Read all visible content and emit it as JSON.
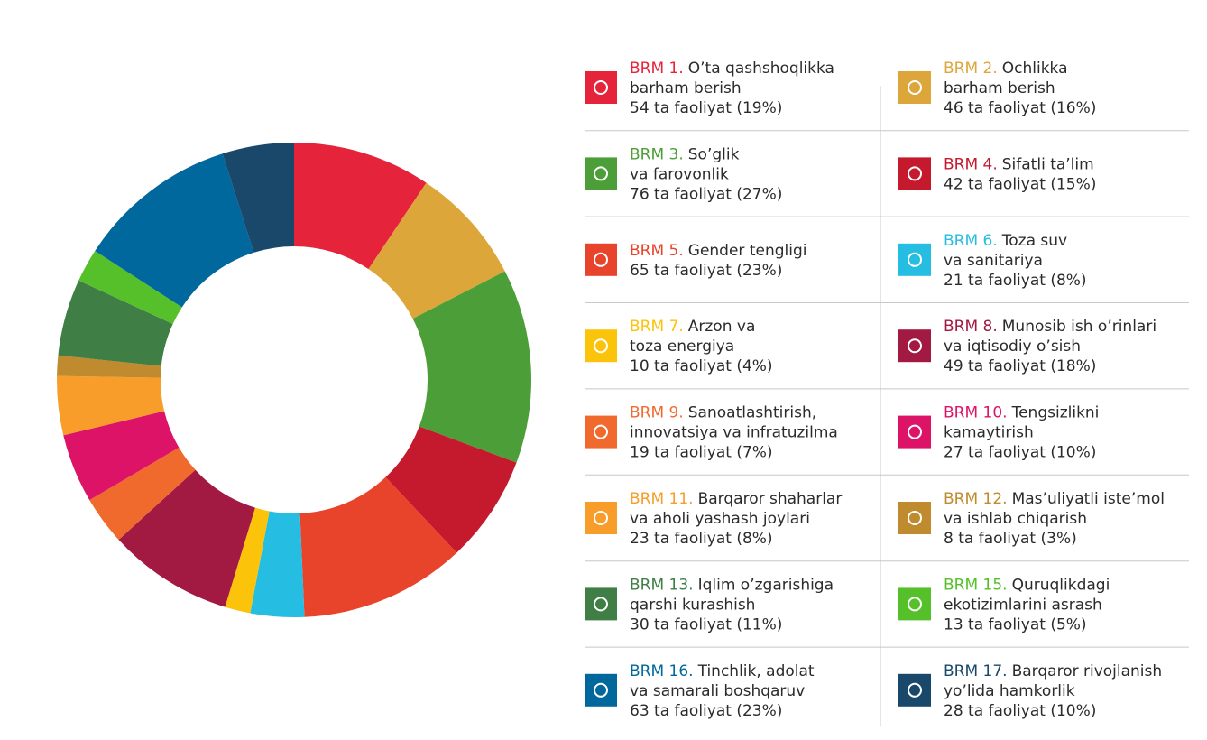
{
  "chart_data": {
    "type": "pie",
    "donut": true,
    "categories": [
      "BRM 1.",
      "BRM 2.",
      "BRM 3.",
      "BRM 4.",
      "BRM 5.",
      "BRM 6.",
      "BRM 7.",
      "BRM 8.",
      "BRM 9.",
      "BRM 10.",
      "BRM 11.",
      "BRM 12.",
      "BRM 13.",
      "BRM 15.",
      "BRM 16.",
      "BRM 17."
    ],
    "names": [
      [
        "O’ta qashshoqlikka",
        "barham berish"
      ],
      [
        "Ochlikka",
        "barham berish"
      ],
      [
        "So’glik",
        "va farovonlik"
      ],
      [
        "Sifatli ta’lim"
      ],
      [
        "Gender tengligi"
      ],
      [
        "Toza suv",
        "va sanitariya"
      ],
      [
        "Arzon va",
        "toza energiya"
      ],
      [
        "Munosib ish o’rinlari",
        "va iqtisodiy o’sish"
      ],
      [
        "Sanoatlashtirish,",
        "innovatsiya va infratuzilma"
      ],
      [
        "Tengsizlikni",
        "kamaytirish"
      ],
      [
        "Barqaror shaharlar",
        "va aholi yashash joylari"
      ],
      [
        "Mas’uliyatli iste’mol",
        "va ishlab chiqarish"
      ],
      [
        "Iqlim o’zgarishiga",
        "qarshi kurashish"
      ],
      [
        "Quruqlikdagi",
        "ekotizimlarini asrash"
      ],
      [
        "Tinchlik, adolat",
        "va samarali boshqaruv"
      ],
      [
        "Barqaror rivojlanish",
        "yo’lida hamkorlik"
      ]
    ],
    "values": [
      54,
      46,
      76,
      42,
      65,
      21,
      10,
      49,
      19,
      27,
      23,
      8,
      30,
      13,
      63,
      28
    ],
    "value_labels": [
      "54 ta faoliyat (19%)",
      "46 ta faoliyat (16%)",
      "76 ta faoliyat (27%)",
      "42 ta faoliyat (15%)",
      "65 ta faoliyat (23%)",
      "21 ta faoliyat (8%)",
      "10 ta faoliyat (4%)",
      "49 ta faoliyat (18%)",
      "19 ta faoliyat (7%)",
      "27 ta faoliyat (10%)",
      "23 ta faoliyat (8%)",
      "8 ta faoliyat (3%)",
      "30 ta faoliyat (11%)",
      "13 ta faoliyat (5%)",
      "63 ta faoliyat (23%)",
      "28 ta faoliyat (10%)"
    ],
    "colors": [
      "#e5243b",
      "#dda63a",
      "#4c9f38",
      "#c5192d",
      "#e8432b",
      "#26bde2",
      "#fcc30b",
      "#a21942",
      "#f0692d",
      "#dd1367",
      "#f89d2a",
      "#bf8b2e",
      "#3f7e44",
      "#56c02b",
      "#00689d",
      "#19486a"
    ]
  }
}
